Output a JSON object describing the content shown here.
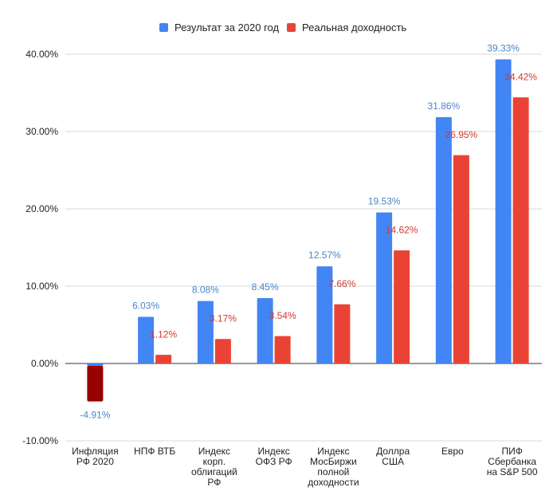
{
  "chart_data": {
    "type": "bar",
    "title": "",
    "xlabel": "",
    "ylabel": "",
    "ylim": [
      -10,
      40
    ],
    "grid": true,
    "legend_position": "top-center",
    "yticks": [
      "-10.00%",
      "0.00%",
      "10.00%",
      "20.00%",
      "30.00%",
      "40.00%"
    ],
    "categories": [
      [
        "Инфляция",
        "РФ 2020"
      ],
      [
        "НПФ ВТБ"
      ],
      [
        "Индекс",
        "корп.",
        "облигаций",
        "РФ"
      ],
      [
        "Индекс",
        "ОФЗ РФ"
      ],
      [
        "Индекс",
        "МосБиржи",
        "полной",
        "доходности"
      ],
      [
        "Доллра",
        "США"
      ],
      [
        "Евро"
      ],
      [
        "ПИФ",
        "Сбербанка",
        "на S&P 500"
      ]
    ],
    "series": [
      {
        "name": "Результат за 2020 год",
        "color": "#4285f4",
        "label_color": "#4a86c8",
        "values": [
          -4.91,
          6.03,
          8.08,
          8.45,
          12.57,
          19.53,
          31.86,
          39.33
        ],
        "labels": [
          "-4.91%",
          "6.03%",
          "8.08%",
          "8.45%",
          "12.57%",
          "19.53%",
          "31.86%",
          "39.33%"
        ]
      },
      {
        "name": "Реальная доходность",
        "color": "#ea4335",
        "label_color": "#d2392d",
        "values": [
          null,
          1.12,
          3.17,
          3.54,
          7.66,
          14.62,
          26.95,
          34.42
        ],
        "labels": [
          "",
          "1.12%",
          "3.17%",
          "3.54%",
          "7.66%",
          "14.62%",
          "26.95%",
          "34.42%"
        ]
      }
    ],
    "special_bar_color": "#990000"
  }
}
